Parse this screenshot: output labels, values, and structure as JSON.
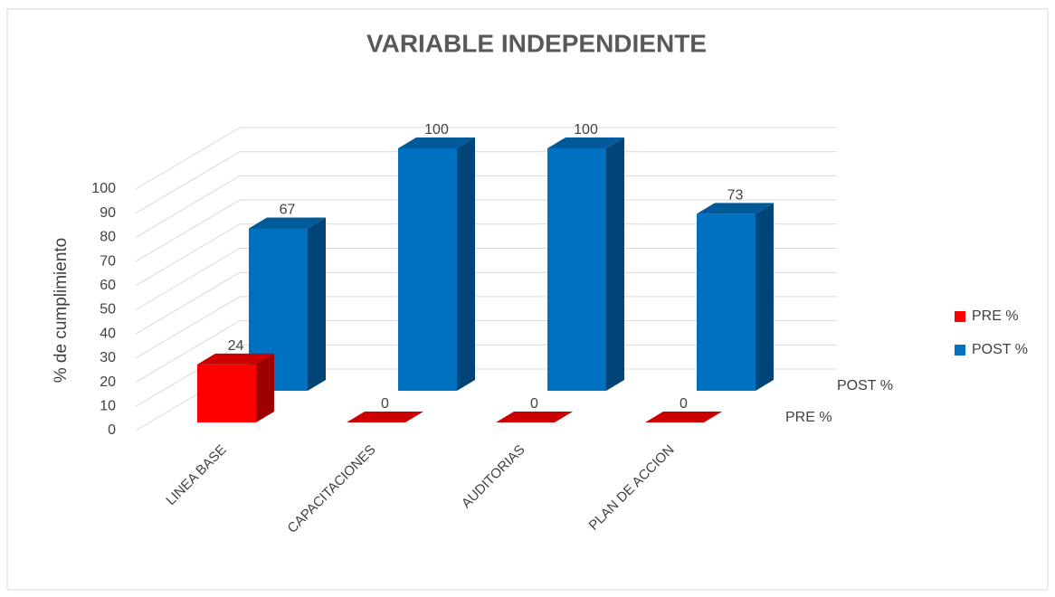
{
  "chart_data": {
    "type": "bar3d",
    "title": "VARIABLE INDEPENDIENTE",
    "y_axis_label": "% de cumplimiento",
    "categories": [
      "LINEA BASE",
      "CAPACITACIONES",
      "AUDITORIAS",
      "PLAN DE ACCION"
    ],
    "series": [
      {
        "name": "PRE %",
        "color": "#ff0000",
        "values": [
          24,
          0,
          0,
          0
        ]
      },
      {
        "name": "POST %",
        "color": "#0070c0",
        "values": [
          67,
          100,
          100,
          73
        ]
      }
    ],
    "ylim": [
      0,
      100
    ],
    "yticks": [
      0,
      10,
      20,
      30,
      40,
      50,
      60,
      70,
      80,
      90,
      100
    ],
    "grid": true,
    "legend": "right"
  }
}
